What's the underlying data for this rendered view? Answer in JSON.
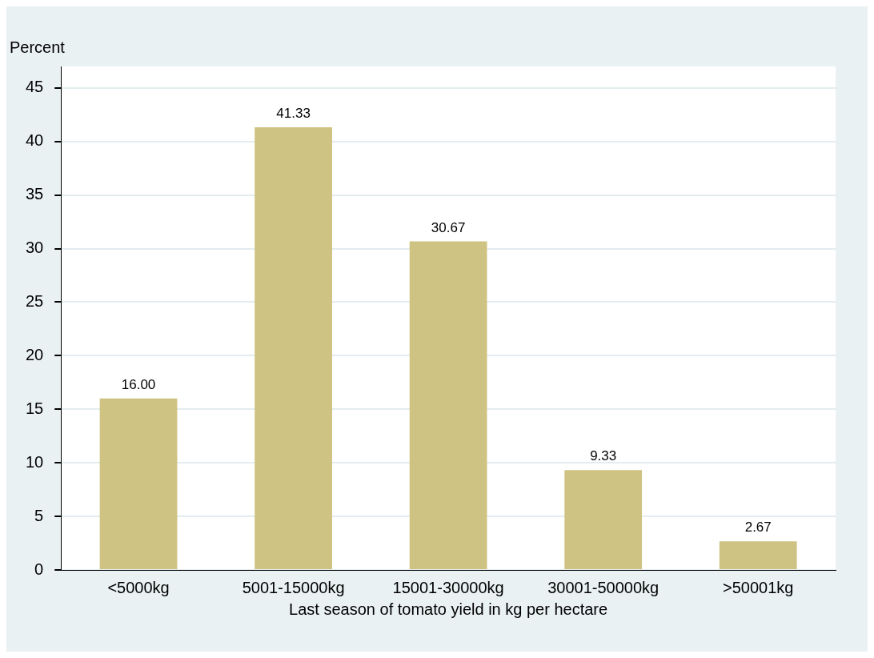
{
  "chart_data": {
    "type": "bar",
    "xlabel": "Last season of tomato yield in kg per hectare",
    "ylabel": "Percent",
    "categories": [
      "<5000kg",
      "5001-15000kg",
      "15001-30000kg",
      "30001-50000kg",
      ">50001kg"
    ],
    "values": [
      16.0,
      41.33,
      30.67,
      9.33,
      2.67
    ],
    "color": "#cfc383",
    "ylim": [
      0,
      47
    ],
    "yticks": [
      0,
      5,
      10,
      15,
      20,
      25,
      30,
      35,
      40,
      45
    ],
    "grid": "y",
    "value_labels": [
      "16.00",
      "41.33",
      "30.67",
      "9.33",
      "2.67"
    ]
  }
}
